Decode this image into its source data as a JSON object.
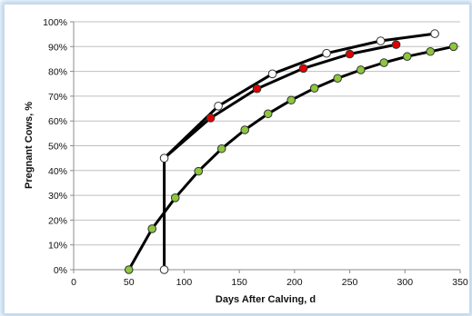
{
  "chart_data": {
    "type": "line",
    "title": "",
    "xlabel": "Days After Calving, d",
    "ylabel": "Pregnant Cows, %",
    "xlim": [
      0,
      350
    ],
    "ylim": [
      0,
      100
    ],
    "x_ticks": [
      "0",
      "50",
      "100",
      "150",
      "200",
      "250",
      "300",
      "350"
    ],
    "y_ticks": [
      "0%",
      "10%",
      "20%",
      "30%",
      "40%",
      "50%",
      "60%",
      "70%",
      "80%",
      "90%",
      "100%"
    ],
    "grid": "horizontal",
    "legend": "none",
    "series": [
      {
        "color": "#8dc63f",
        "marker": "circle",
        "x": [
          50,
          71,
          92,
          113,
          134,
          155,
          176,
          197,
          218,
          239,
          260,
          281,
          302,
          323,
          344
        ],
        "y": [
          0,
          16.5,
          29,
          39.7,
          48.8,
          56.4,
          62.9,
          68.4,
          73.2,
          77.2,
          80.6,
          83.5,
          86,
          88,
          90
        ]
      },
      {
        "color": "#ffffff",
        "marker": "circle",
        "x": [
          82,
          82,
          131,
          180,
          229,
          278,
          327
        ],
        "y": [
          0,
          45,
          66,
          79,
          87.3,
          92.3,
          95.2
        ]
      },
      {
        "color": "#e00000",
        "marker": "circle",
        "x": [
          124,
          166,
          208,
          250,
          292
        ],
        "y": [
          61.2,
          73,
          81.2,
          87,
          90.8
        ]
      }
    ],
    "curves": [
      {
        "x": [
          82,
          131,
          180,
          229,
          278,
          327
        ],
        "y": [
          45,
          66,
          79,
          87.3,
          92.3,
          95.2
        ]
      },
      {
        "x": [
          82,
          124,
          166,
          208,
          250,
          292
        ],
        "y": [
          45,
          61.2,
          73,
          81.2,
          87,
          90.8
        ]
      }
    ]
  }
}
